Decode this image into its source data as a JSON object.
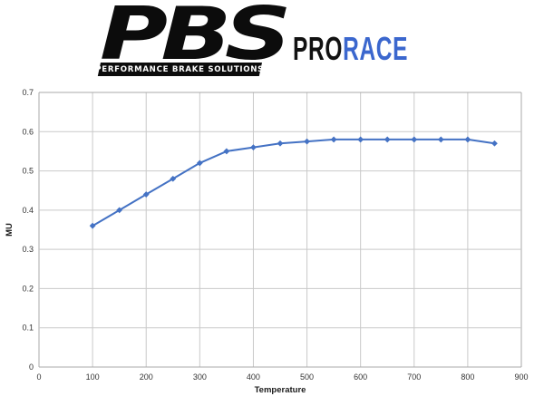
{
  "logo": {
    "brand": "PBS",
    "tagline": "PERFORMANCE BRAKE SOLUTIONS",
    "product_pro": "PRO",
    "product_race": "RACE",
    "brand_color": "#0c0c0c",
    "race_color": "#3B67CE"
  },
  "chart_data": {
    "type": "line",
    "title": "",
    "xlabel": "Temperature",
    "ylabel": "MU",
    "x": [
      100,
      150,
      200,
      250,
      300,
      350,
      400,
      450,
      500,
      550,
      600,
      650,
      700,
      750,
      800,
      850
    ],
    "series": [
      {
        "name": "MU",
        "values": [
          0.36,
          0.4,
          0.44,
          0.48,
          0.52,
          0.55,
          0.56,
          0.57,
          0.575,
          0.58,
          0.58,
          0.58,
          0.58,
          0.58,
          0.58,
          0.57
        ]
      }
    ],
    "xlim": [
      0,
      900
    ],
    "ylim": [
      0,
      0.7
    ],
    "x_ticks": [
      0,
      100,
      200,
      300,
      400,
      500,
      600,
      700,
      800,
      900
    ],
    "y_ticks": [
      0,
      0.1,
      0.2,
      0.3,
      0.4,
      0.5,
      0.6,
      0.7
    ],
    "grid": true,
    "legend_position": "none",
    "line_color": "#4472C4",
    "marker": "diamond",
    "grid_color": "#c9c9c9",
    "border_color": "#a8a8a8",
    "tick_label_color": "#333333",
    "axis_title_color": "#1a1a1a"
  }
}
